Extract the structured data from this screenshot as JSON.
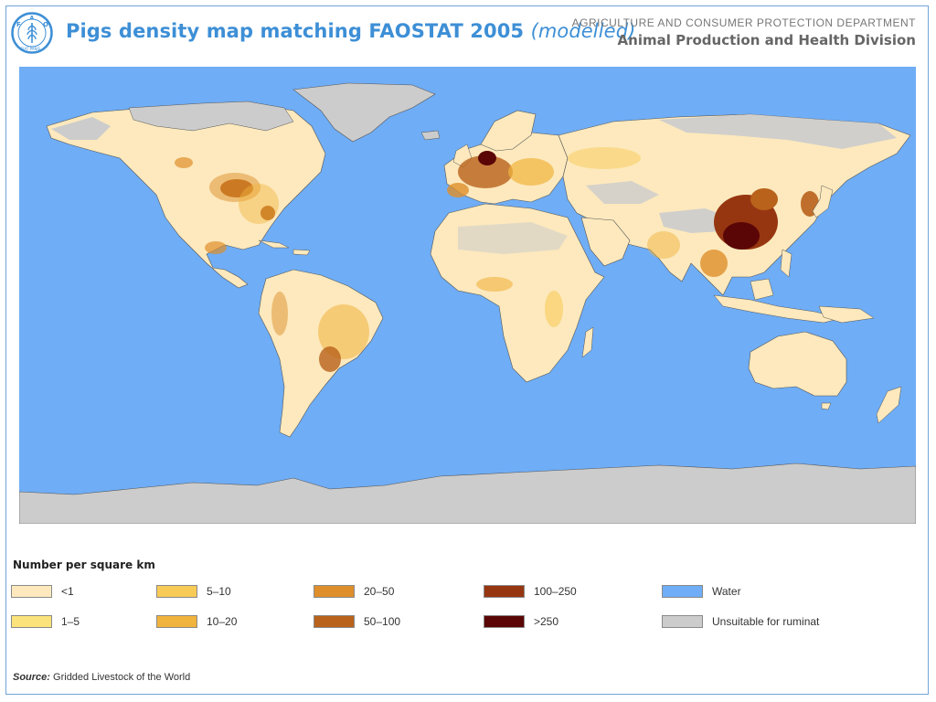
{
  "header": {
    "logo_text": "FAO",
    "logo_motto": "FIAT PANIS",
    "title_main": "Pigs density map matching FAOSTAT 2005",
    "title_sub": "(modelled)",
    "department": "AGRICULTURE AND CONSUMER PROTECTION DEPARTMENT",
    "division": "Animal Production and Health Division"
  },
  "legend": {
    "title": "Number per square km",
    "items": [
      {
        "label": "<1",
        "color": "#fde9bd"
      },
      {
        "label": "1–5",
        "color": "#fbe27a"
      },
      {
        "label": "5–10",
        "color": "#f8cb57"
      },
      {
        "label": "10–20",
        "color": "#f0b33d"
      },
      {
        "label": "20–50",
        "color": "#de8f2b"
      },
      {
        "label": "50–100",
        "color": "#b8621b"
      },
      {
        "label": "100–250",
        "color": "#963611"
      },
      {
        "label": ">250",
        "color": "#5b0606"
      },
      {
        "label": "Water",
        "color": "#6fadf6"
      },
      {
        "label": "Unsuitable for ruminat",
        "color": "#cccccc"
      }
    ]
  },
  "source": {
    "label": "Source:",
    "text": " Gridded Livestock of the World"
  }
}
